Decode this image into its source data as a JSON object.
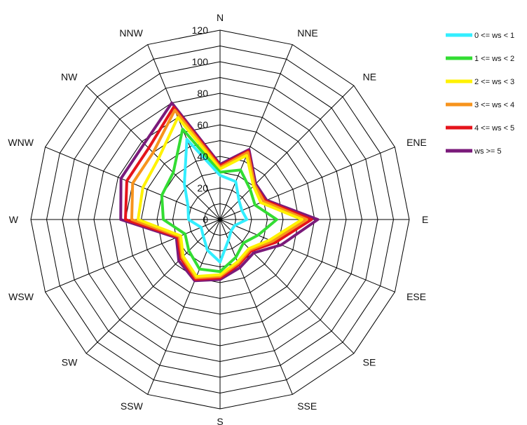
{
  "chart_data": {
    "type": "radar",
    "title": "",
    "directions": [
      "N",
      "NNE",
      "NE",
      "ENE",
      "E",
      "ESE",
      "SE",
      "SSE",
      "S",
      "SSW",
      "SW",
      "WSW",
      "W",
      "WNW",
      "NW",
      "NNW"
    ],
    "radial_ticks": [
      0,
      20,
      40,
      60,
      80,
      100,
      120
    ],
    "rmax": 120,
    "grid": true,
    "legend_position": "right",
    "series": [
      {
        "name": "ws >= 5",
        "color": "#7a1a7a",
        "values": [
          35,
          48,
          32,
          32,
          62,
          42,
          30,
          33,
          38,
          42,
          37,
          30,
          63,
          68,
          68,
          80
        ]
      },
      {
        "name": "4 <= ws < 5",
        "color": "#e5141b",
        "values": [
          34,
          47,
          31,
          31,
          58,
          38,
          28,
          31,
          37,
          41,
          35,
          29,
          60,
          64,
          64,
          77
        ]
      },
      {
        "name": "3 <= ws < 4",
        "color": "#f7941d",
        "values": [
          33,
          46,
          31,
          30,
          55,
          36,
          27,
          30,
          36,
          40,
          34,
          28,
          56,
          60,
          60,
          75
        ]
      },
      {
        "name": "2 <= ws < 3",
        "color": "#fff200",
        "values": [
          32,
          44,
          30,
          28,
          52,
          34,
          26,
          29,
          35,
          39,
          33,
          27,
          52,
          53,
          55,
          70
        ]
      },
      {
        "name": "1 <= ws < 2",
        "color": "#33dd33",
        "values": [
          30,
          34,
          27,
          24,
          36,
          26,
          21,
          26,
          33,
          34,
          28,
          24,
          36,
          40,
          42,
          62
        ]
      },
      {
        "name": "0 <= ws < 1",
        "color": "#33eeff",
        "values": [
          28,
          26,
          17,
          15,
          17,
          10,
          10,
          14,
          27,
          21,
          15,
          13,
          20,
          22,
          32,
          55
        ]
      }
    ],
    "legend_order": [
      "0 <= ws < 1",
      "1 <= ws < 2",
      "2 <= ws < 3",
      "3 <= ws < 4",
      "4 <= ws < 5",
      "ws >= 5"
    ]
  }
}
